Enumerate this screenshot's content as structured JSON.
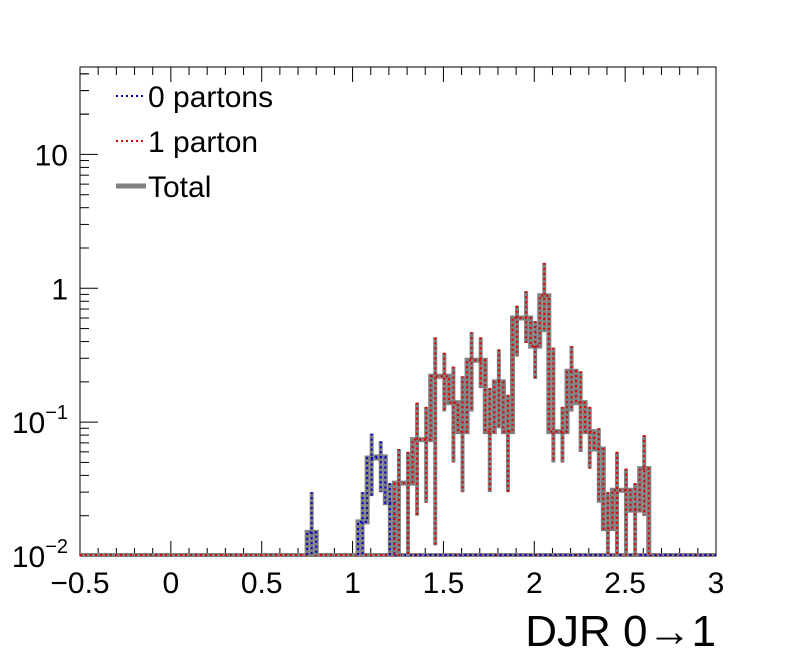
{
  "chart_data": {
    "type": "histogram",
    "xlabel": "DJR 0→1",
    "ylabel": "",
    "xlim": [
      -0.5,
      3
    ],
    "ylim": [
      0.01,
      45
    ],
    "y_scale": "log",
    "grid": false,
    "legend_position": "top-left",
    "x_ticks": [
      "−0.5",
      "0",
      "0.5",
      "1",
      "1.5",
      "2",
      "2.5",
      "3"
    ],
    "x_tick_values": [
      -0.5,
      0,
      0.5,
      1,
      1.5,
      2,
      2.5,
      3
    ],
    "y_ticks": [
      {
        "value": 0.01,
        "base": "10",
        "exp": "−2"
      },
      {
        "value": 0.1,
        "base": "10",
        "exp": "−1"
      },
      {
        "value": 1,
        "label": "1"
      },
      {
        "value": 10,
        "label": "10"
      }
    ],
    "series": [
      {
        "name": "0 partons",
        "color": "#0000cc",
        "style": "dotted",
        "bins": [
          {
            "x0": 0.75,
            "x1": 0.8,
            "y": 0.015,
            "err_hi": 0.03,
            "err_lo": 0.01
          },
          {
            "x0": 1.03,
            "x1": 1.08,
            "y": 0.018,
            "err_hi": 0.03,
            "err_lo": 0.01
          },
          {
            "x0": 1.08,
            "x1": 1.13,
            "y": 0.054,
            "err_hi": 0.082,
            "err_lo": 0.028
          },
          {
            "x0": 1.13,
            "x1": 1.18,
            "y": 0.055,
            "err_hi": 0.072,
            "err_lo": 0.03
          },
          {
            "x0": 1.18,
            "x1": 1.23,
            "y": 0.025,
            "err_hi": 0.035,
            "err_lo": 0.01
          }
        ]
      },
      {
        "name": "1 parton",
        "color": "#dd0000",
        "style": "dotted",
        "bins": [
          {
            "x0": 1.23,
            "x1": 1.28,
            "y": 0.035,
            "err_hi": 0.063,
            "err_lo": 0.01
          },
          {
            "x0": 1.28,
            "x1": 1.33,
            "y": 0.035,
            "err_hi": 0.06,
            "err_lo": 0.01
          },
          {
            "x0": 1.33,
            "x1": 1.38,
            "y": 0.074,
            "err_hi": 0.14,
            "err_lo": 0.02
          },
          {
            "x0": 1.38,
            "x1": 1.43,
            "y": 0.074,
            "err_hi": 0.13,
            "err_lo": 0.025
          },
          {
            "x0": 1.43,
            "x1": 1.48,
            "y": 0.22,
            "err_hi": 0.43,
            "err_lo": 0.012
          },
          {
            "x0": 1.48,
            "x1": 1.53,
            "y": 0.22,
            "err_hi": 0.33,
            "err_lo": 0.12
          },
          {
            "x0": 1.53,
            "x1": 1.58,
            "y": 0.14,
            "err_hi": 0.26,
            "err_lo": 0.05
          },
          {
            "x0": 1.58,
            "x1": 1.63,
            "y": 0.085,
            "err_hi": 0.22,
            "err_lo": 0.03
          },
          {
            "x0": 1.63,
            "x1": 1.68,
            "y": 0.29,
            "err_hi": 0.47,
            "err_lo": 0.12
          },
          {
            "x0": 1.68,
            "x1": 1.73,
            "y": 0.29,
            "err_hi": 0.43,
            "err_lo": 0.18
          },
          {
            "x0": 1.73,
            "x1": 1.78,
            "y": 0.085,
            "err_hi": 0.18,
            "err_lo": 0.03
          },
          {
            "x0": 1.78,
            "x1": 1.83,
            "y": 0.2,
            "err_hi": 0.35,
            "err_lo": 0.09
          },
          {
            "x0": 1.83,
            "x1": 1.88,
            "y": 0.085,
            "err_hi": 0.16,
            "err_lo": 0.03
          },
          {
            "x0": 1.88,
            "x1": 1.93,
            "y": 0.6,
            "err_hi": 0.74,
            "err_lo": 0.31
          },
          {
            "x0": 1.93,
            "x1": 1.98,
            "y": 0.6,
            "err_hi": 0.95,
            "err_lo": 0.39
          },
          {
            "x0": 1.98,
            "x1": 2.03,
            "y": 0.37,
            "err_hi": 0.57,
            "err_lo": 0.21
          },
          {
            "x0": 2.03,
            "x1": 2.08,
            "y": 0.88,
            "err_hi": 1.55,
            "err_lo": 0.47
          },
          {
            "x0": 2.08,
            "x1": 2.13,
            "y": 0.085,
            "err_hi": 0.36,
            "err_lo": 0.05
          },
          {
            "x0": 2.13,
            "x1": 2.18,
            "y": 0.085,
            "err_hi": 0.13,
            "err_lo": 0.05
          },
          {
            "x0": 2.18,
            "x1": 2.23,
            "y": 0.24,
            "err_hi": 0.37,
            "err_lo": 0.12
          },
          {
            "x0": 2.23,
            "x1": 2.28,
            "y": 0.14,
            "err_hi": 0.24,
            "err_lo": 0.06
          },
          {
            "x0": 2.28,
            "x1": 2.33,
            "y": 0.085,
            "err_hi": 0.13,
            "err_lo": 0.045
          },
          {
            "x0": 2.33,
            "x1": 2.38,
            "y": 0.063,
            "err_hi": 0.09,
            "err_lo": 0.025
          },
          {
            "x0": 2.38,
            "x1": 2.43,
            "y": 0.016,
            "err_hi": 0.03,
            "err_lo": 0.01
          },
          {
            "x0": 2.43,
            "x1": 2.48,
            "y": 0.031,
            "err_hi": 0.06,
            "err_lo": 0.01
          },
          {
            "x0": 2.48,
            "x1": 2.53,
            "y": 0.031,
            "err_hi": 0.045,
            "err_lo": 0.01
          },
          {
            "x0": 2.53,
            "x1": 2.58,
            "y": 0.022,
            "err_hi": 0.035,
            "err_lo": 0.01
          },
          {
            "x0": 2.58,
            "x1": 2.63,
            "y": 0.045,
            "err_hi": 0.08,
            "err_lo": 0.02
          }
        ]
      },
      {
        "name": "Total",
        "color": "#808080",
        "style": "solid"
      }
    ]
  }
}
